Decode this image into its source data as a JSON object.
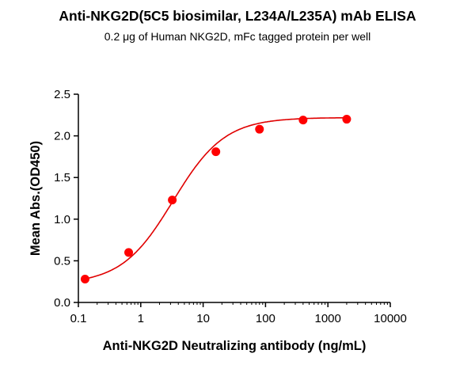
{
  "chart_data": {
    "type": "scatter",
    "title": "Anti-NKG2D(5C5 biosimilar, L234A/L235A) mAb ELISA",
    "subtitle": "0.2 μg of Human NKG2D, mFc tagged protein per well",
    "xlabel": "Anti-NKG2D Neutralizing antibody (ng/mL)",
    "ylabel": "Mean Abs.(OD450)",
    "xscale": "log",
    "xlim": [
      0.1,
      10000
    ],
    "ylim": [
      0,
      2.5
    ],
    "xticks": [
      "0.1",
      "1",
      "10",
      "100",
      "1000",
      "10000"
    ],
    "xtick_values": [
      0.1,
      1,
      10,
      100,
      1000,
      10000
    ],
    "yticks": [
      "0.0",
      "0.5",
      "1.0",
      "1.5",
      "2.0",
      "2.5"
    ],
    "ytick_values": [
      0,
      0.5,
      1.0,
      1.5,
      2.0,
      2.5
    ],
    "grid": false,
    "series": [
      {
        "x": [
          0.128,
          0.64,
          3.2,
          16,
          80,
          400,
          2000
        ],
        "y": [
          0.28,
          0.6,
          1.23,
          1.81,
          2.08,
          2.19,
          2.2
        ],
        "fit": "4PL curve"
      }
    ],
    "colors": {
      "points": "#ff0000",
      "curve": "#e00000",
      "axes": "#000000"
    }
  }
}
